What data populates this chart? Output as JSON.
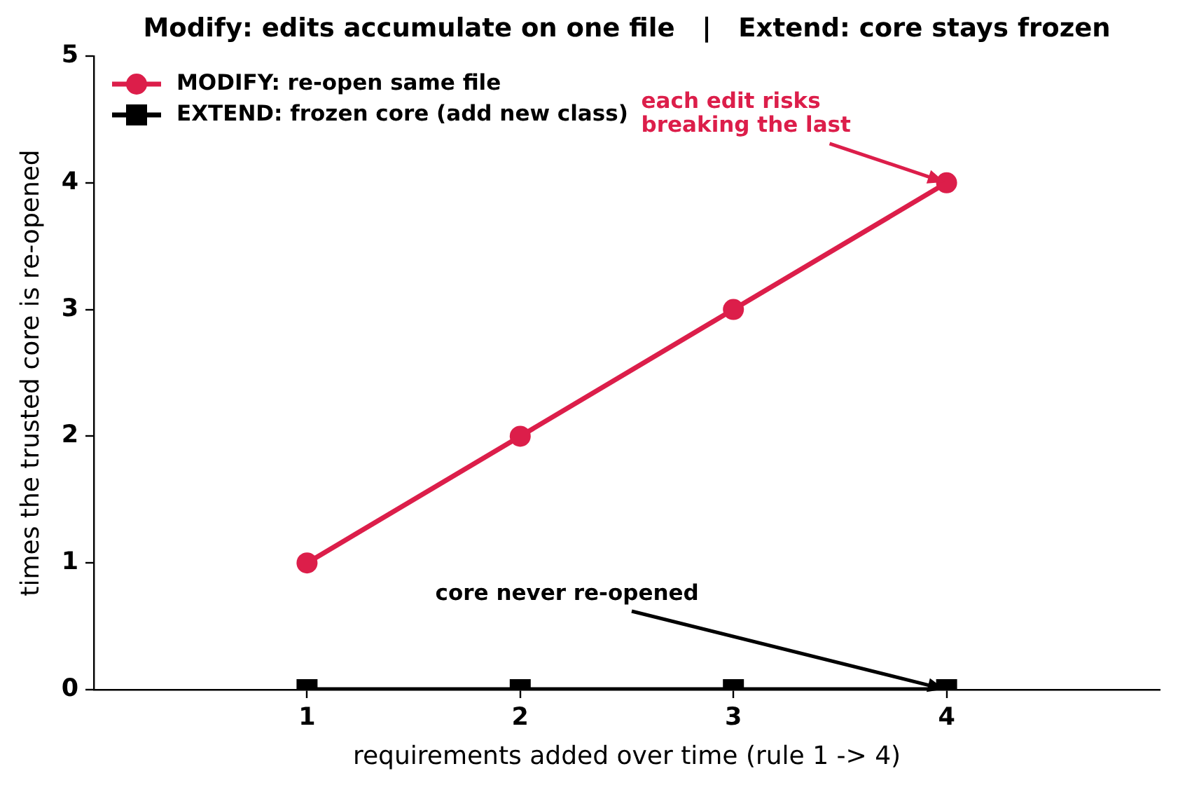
{
  "chart_data": {
    "type": "line",
    "title": "Modify: edits accumulate on one file   |   Extend: core stays frozen",
    "xlabel": "requirements added over time (rule 1 -> 4)",
    "ylabel": "times the trusted core is re-opened",
    "x": [
      1,
      2,
      3,
      4
    ],
    "series": [
      {
        "name": "MODIFY: re-open same file",
        "color": "#dc1e4a",
        "marker": "circle",
        "values": [
          1,
          2,
          3,
          4
        ]
      },
      {
        "name": "EXTEND: frozen core (add new class)",
        "color": "#000000",
        "marker": "square",
        "values": [
          0,
          0,
          0,
          0
        ]
      }
    ],
    "xlim": [
      0,
      5
    ],
    "xticks": [
      1,
      2,
      3,
      4
    ],
    "ylim": [
      0,
      5
    ],
    "yticks": [
      0,
      1,
      2,
      3,
      4,
      5
    ],
    "grid": false,
    "legend": "top left",
    "annotations": [
      {
        "text": "each edit risks\nbreaking the last",
        "x": 4,
        "y": 4
      },
      {
        "text": "core never re-opened",
        "x": 4,
        "y": 0
      }
    ]
  }
}
